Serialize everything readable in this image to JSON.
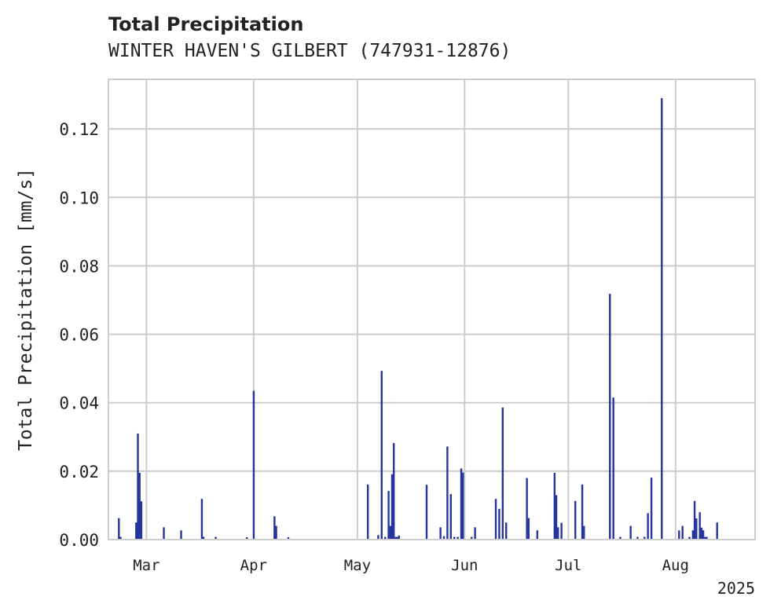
{
  "title": "Total Precipitation",
  "subtitle": "WINTER HAVEN'S GILBERT (747931-12876)",
  "chart_data": {
    "type": "bar",
    "ylabel": "Total Precipitation [mm/s]",
    "xlabel": "",
    "year_label": "2025",
    "ylim": [
      0,
      0.1345
    ],
    "xlim": [
      "2025-02-18",
      "2025-08-24"
    ],
    "yticks": [
      0,
      0.02,
      0.04,
      0.06,
      0.08,
      0.1,
      0.12
    ],
    "ytick_labels": [
      "0.00",
      "0.02",
      "0.04",
      "0.06",
      "0.08",
      "0.10",
      "0.12"
    ],
    "xticks": [
      "2025-03-01",
      "2025-04-01",
      "2025-05-01",
      "2025-06-01",
      "2025-07-01",
      "2025-08-01"
    ],
    "xtick_labels": [
      "Mar",
      "Apr",
      "May",
      "Jun",
      "Jul",
      "Aug"
    ],
    "grid": true,
    "bar_color": "#25349a",
    "series": [
      {
        "x": [
          "2025-02-21",
          "2025-02-21",
          "2025-02-26",
          "2025-02-26",
          "2025-02-27",
          "2025-02-27",
          "2025-03-06",
          "2025-03-11",
          "2025-03-17",
          "2025-03-17",
          "2025-03-21",
          "2025-03-30",
          "2025-04-01",
          "2025-04-07",
          "2025-04-07",
          "2025-04-11",
          "2025-05-04",
          "2025-05-07",
          "2025-05-08",
          "2025-05-09",
          "2025-05-10",
          "2025-05-10",
          "2025-05-11",
          "2025-05-11",
          "2025-05-12",
          "2025-05-12",
          "2025-05-13",
          "2025-05-21",
          "2025-05-25",
          "2025-05-26",
          "2025-05-27",
          "2025-05-28",
          "2025-05-29",
          "2025-05-30",
          "2025-05-31",
          "2025-05-31",
          "2025-06-03",
          "2025-06-04",
          "2025-06-10",
          "2025-06-11",
          "2025-06-12",
          "2025-06-13",
          "2025-06-19",
          "2025-06-19",
          "2025-06-22",
          "2025-06-27",
          "2025-06-27",
          "2025-06-28",
          "2025-06-29",
          "2025-07-03",
          "2025-07-05",
          "2025-07-05",
          "2025-07-13",
          "2025-07-14",
          "2025-07-16",
          "2025-07-19",
          "2025-07-21",
          "2025-07-23",
          "2025-07-24",
          "2025-07-25",
          "2025-07-28",
          "2025-08-02",
          "2025-08-03",
          "2025-08-05",
          "2025-08-06",
          "2025-08-06",
          "2025-08-07",
          "2025-08-08",
          "2025-08-08",
          "2025-08-09",
          "2025-08-09",
          "2025-08-10",
          "2025-08-13"
        ],
        "values": [
          0.0063,
          0.0008,
          0.005,
          0.031,
          0.0195,
          0.0112,
          0.0036,
          0.0027,
          0.0119,
          0.0008,
          0.0008,
          0.0007,
          0.0435,
          0.0068,
          0.004,
          0.0007,
          0.0161,
          0.0013,
          0.0493,
          0.0008,
          0.0142,
          0.004,
          0.0191,
          0.0282,
          0.0008,
          0.0008,
          0.0012,
          0.016,
          0.0036,
          0.001,
          0.0272,
          0.0133,
          0.0008,
          0.0008,
          0.0208,
          0.0196,
          0.0008,
          0.0036,
          0.0119,
          0.009,
          0.0386,
          0.005,
          0.018,
          0.0063,
          0.0027,
          0.0195,
          0.013,
          0.0036,
          0.0049,
          0.0113,
          0.0161,
          0.004,
          0.0718,
          0.0415,
          0.0008,
          0.004,
          0.0008,
          0.0008,
          0.0077,
          0.0181,
          0.129,
          0.0027,
          0.004,
          0.0008,
          0.0027,
          0.0113,
          0.0062,
          0.008,
          0.0035,
          0.0027,
          0.0008,
          0.0008,
          0.005
        ]
      }
    ]
  }
}
